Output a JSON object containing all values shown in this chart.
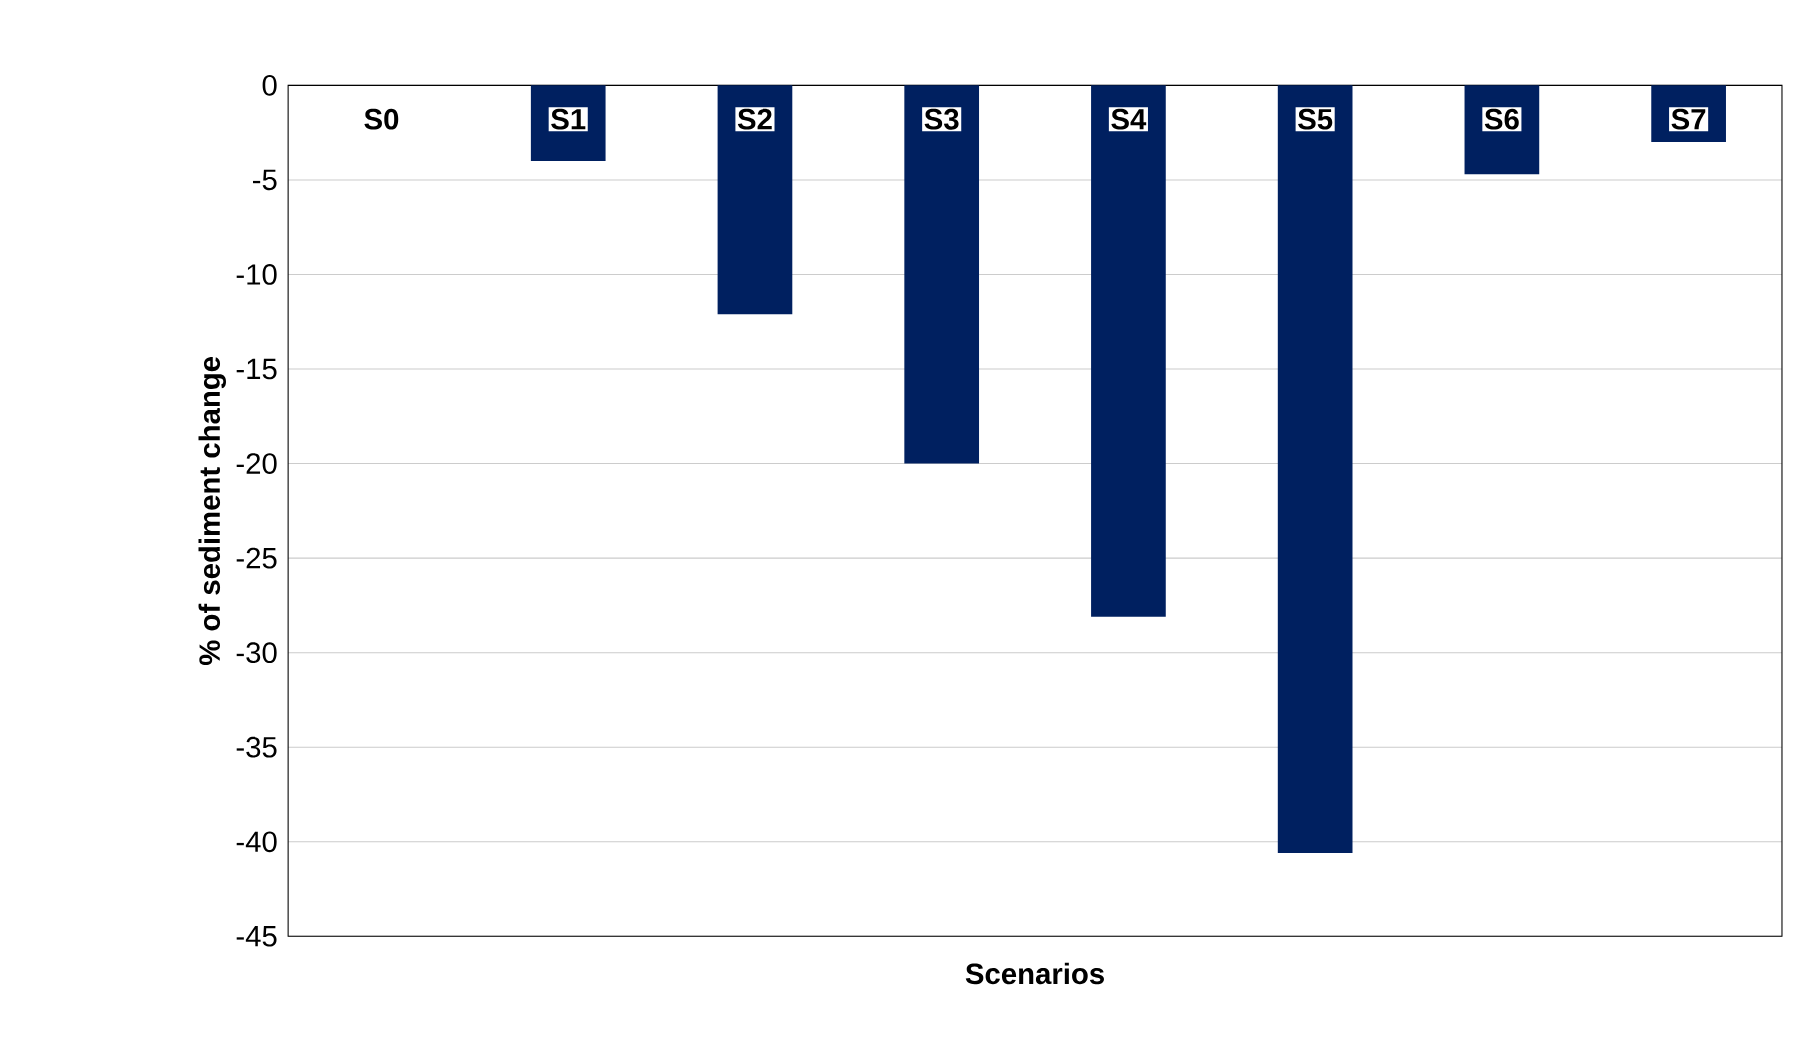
{
  "chart_data": {
    "type": "bar",
    "xlabel": "Scenarios",
    "ylabel": "% of sediment change",
    "categories": [
      "S0",
      "S1",
      "S2",
      "S3",
      "S4",
      "S5",
      "S6",
      "S7"
    ],
    "values": [
      0,
      -4.0,
      -12.1,
      -20.0,
      -28.1,
      -40.6,
      -4.7,
      -3.0
    ],
    "color": "#002060",
    "ylim": [
      -45,
      0
    ],
    "yticks": [
      0,
      -5,
      -10,
      -15,
      -20,
      -25,
      -30,
      -35,
      -40,
      -45
    ],
    "grid": "y"
  }
}
